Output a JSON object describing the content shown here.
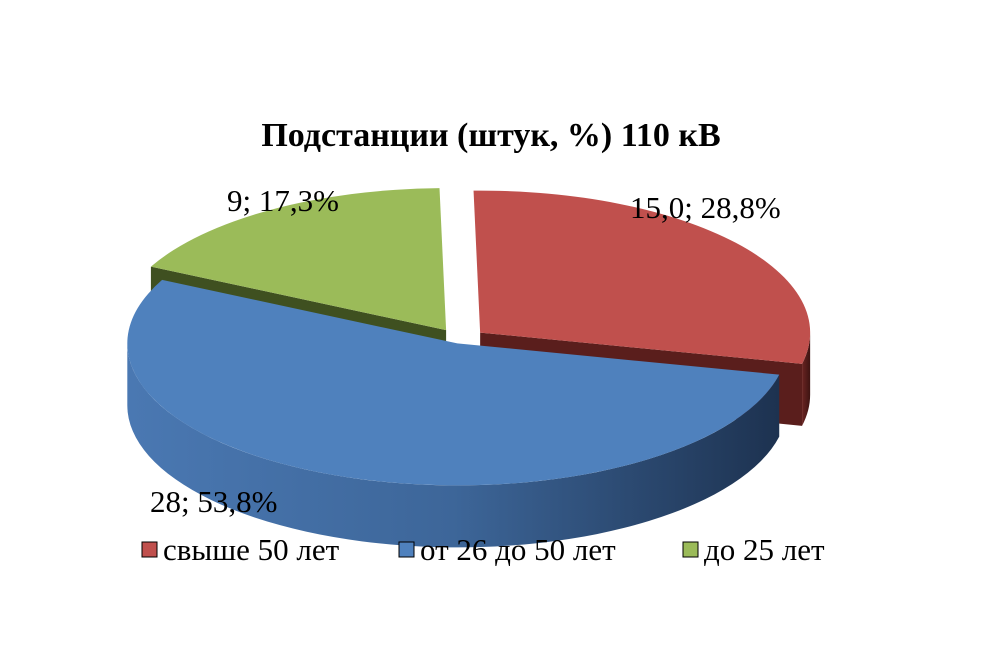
{
  "chart_data": {
    "type": "pie",
    "title": "Подстанции (штук, %) 110 кВ",
    "slices": [
      {
        "name": "свыше 50 лет",
        "value": 15,
        "percent": 28.8,
        "label": "15,0; 28,8%",
        "color": "#c0504d",
        "side_color": "#5a1e1c"
      },
      {
        "name": "от 26 до 50 лет",
        "value": 28,
        "percent": 53.8,
        "label": "28; 53,8%",
        "color": "#4f81bd",
        "side_color": "#1f3656"
      },
      {
        "name": "до 25 лет",
        "value": 9,
        "percent": 17.3,
        "label": "9; 17,3%",
        "color": "#9bbb59",
        "side_color": "#3f5020"
      }
    ],
    "legend_position": "bottom",
    "style": "3d-exploded"
  }
}
